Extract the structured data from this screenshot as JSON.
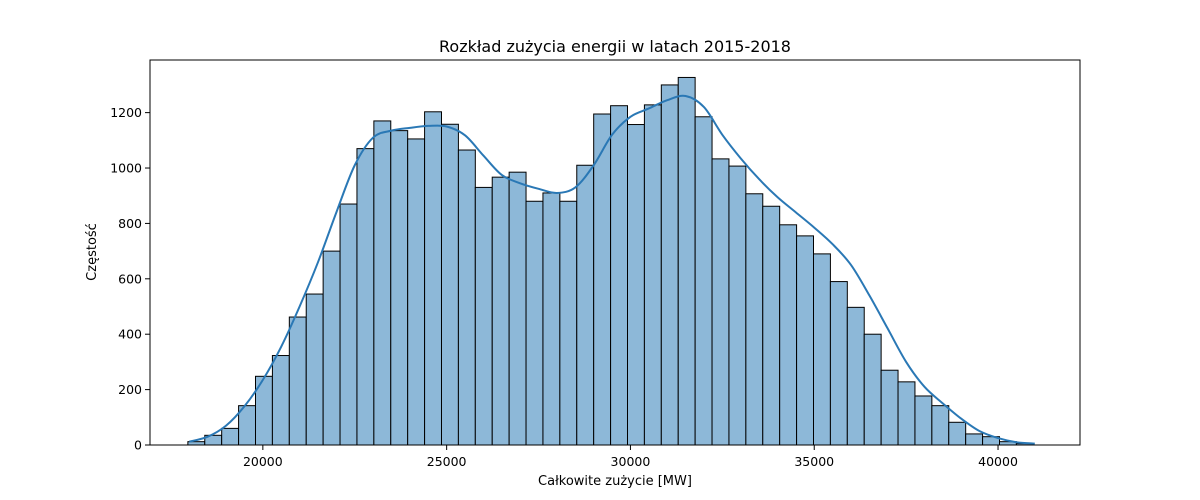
{
  "chart_data": {
    "type": "bar",
    "subtype": "histogram-with-kde",
    "title": "Rozkład zużycia energii w latach 2015-2018",
    "xlabel": "Całkowite zużycie [MW]",
    "ylabel": "Częstość",
    "xlim": [
      16930,
      42230
    ],
    "ylim": [
      0,
      1390
    ],
    "xticks": [
      20000,
      25000,
      30000,
      35000,
      40000
    ],
    "yticks": [
      0,
      200,
      400,
      600,
      800,
      1000,
      1200
    ],
    "bin_start": 17960,
    "bin_width": 460,
    "counts": [
      12,
      35,
      60,
      142,
      248,
      323,
      462,
      545,
      700,
      870,
      1070,
      1170,
      1135,
      1105,
      1203,
      1158,
      1065,
      930,
      967,
      985,
      880,
      910,
      880,
      1010,
      1195,
      1225,
      1157,
      1228,
      1300,
      1327,
      1185,
      1033,
      1007,
      907,
      862,
      795,
      755,
      690,
      590,
      497,
      400,
      270,
      228,
      177,
      142,
      82,
      40,
      30,
      12,
      5
    ],
    "kde": {
      "x": [
        18000,
        18500,
        19000,
        19500,
        20000,
        20500,
        21000,
        21500,
        22000,
        22500,
        23000,
        23500,
        24000,
        24500,
        25000,
        25500,
        26000,
        26500,
        27000,
        27500,
        28000,
        28500,
        29000,
        29500,
        30000,
        30500,
        31000,
        31500,
        32000,
        32500,
        33000,
        33500,
        34000,
        34500,
        35000,
        35500,
        36000,
        36500,
        37000,
        37500,
        38000,
        38500,
        39000,
        39500,
        40000,
        40500,
        41000
      ],
      "y": [
        12,
        30,
        70,
        140,
        235,
        355,
        500,
        660,
        840,
        1010,
        1110,
        1135,
        1145,
        1152,
        1150,
        1118,
        1045,
        975,
        945,
        925,
        910,
        930,
        1010,
        1120,
        1185,
        1215,
        1245,
        1260,
        1220,
        1120,
        1035,
        960,
        895,
        840,
        785,
        725,
        650,
        540,
        420,
        300,
        210,
        150,
        95,
        50,
        25,
        10,
        5
      ]
    },
    "colors": {
      "bar_fill": "#8db8d8",
      "bar_edge": "#000000",
      "kde_line": "#2a78b5"
    },
    "grid": false,
    "legend": "none"
  }
}
